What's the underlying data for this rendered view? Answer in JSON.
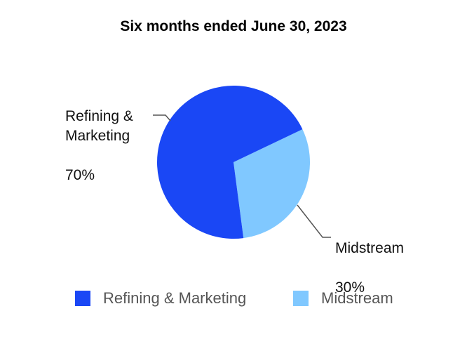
{
  "chart_data": {
    "type": "pie",
    "title": "Six months ended June 30, 2023",
    "slices": [
      {
        "label": "Refining &\nMarketing",
        "percent_label": "70%",
        "value": 70,
        "color": "#1a47f5",
        "legend": "Refining & Marketing"
      },
      {
        "label": "Midstream",
        "percent_label": "30%",
        "value": 30,
        "color": "#80c8ff",
        "legend": "Midstream"
      }
    ],
    "legend_placement": "bottom"
  }
}
